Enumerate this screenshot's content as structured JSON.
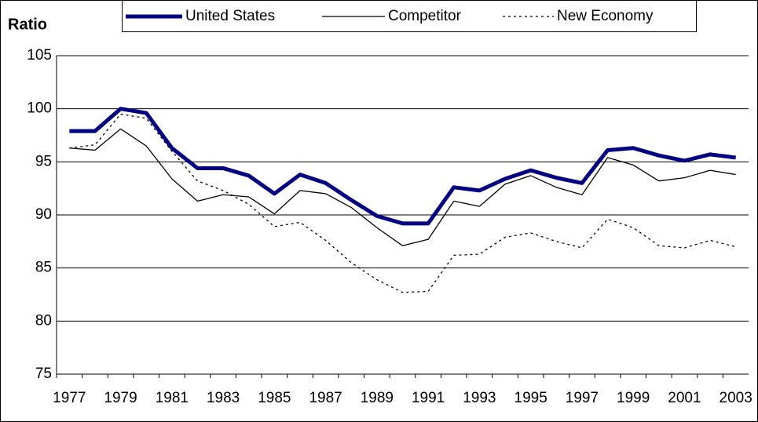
{
  "chart_data": {
    "type": "line",
    "y_label": "Ratio",
    "categories": [
      "1977",
      null,
      "1979",
      null,
      "1981",
      null,
      "1983",
      null,
      "1985",
      null,
      "1987",
      null,
      "1989",
      null,
      "1991",
      null,
      "1993",
      null,
      "1995",
      null,
      "1997",
      null,
      "1999",
      null,
      "2001",
      null,
      "2003"
    ],
    "series": [
      {
        "name": "United States",
        "color": "#000080",
        "line_width": 5,
        "dash": false,
        "values": [
          97.9,
          97.9,
          100,
          99.6,
          96.3,
          94.4,
          94.4,
          93.7,
          92.0,
          93.8,
          93.0,
          91.4,
          89.9,
          89.2,
          89.2,
          92.6,
          92.3,
          93.4,
          94.2,
          93.5,
          93.0,
          96.1,
          96.3,
          95.6,
          95.1,
          95.7,
          95.4
        ]
      },
      {
        "name": "Competitor",
        "color": "#000000",
        "line_width": 1.3,
        "dash": false,
        "values": [
          96.3,
          96.1,
          98.1,
          96.5,
          93.4,
          91.3,
          91.9,
          91.7,
          90.1,
          92.3,
          92.0,
          90.7,
          88.8,
          87.1,
          87.7,
          91.3,
          90.8,
          92.9,
          93.7,
          92.6,
          91.9,
          95.4,
          94.7,
          93.2,
          93.5,
          94.2,
          93.8
        ]
      },
      {
        "name": "New Economy",
        "color": "#000000",
        "line_width": 1.3,
        "dash": true,
        "values": [
          96.3,
          96.6,
          99.5,
          99.1,
          96.0,
          93.2,
          92.3,
          91.0,
          88.9,
          89.3,
          87.6,
          85.5,
          83.9,
          82.7,
          82.8,
          86.2,
          86.3,
          87.9,
          88.3,
          87.5,
          86.9,
          89.6,
          88.8,
          87.1,
          86.9,
          87.6,
          87.0
        ]
      }
    ],
    "ylim": [
      75,
      105
    ],
    "yticks": [
      75,
      80,
      85,
      90,
      95,
      100,
      105
    ],
    "grid": true
  }
}
